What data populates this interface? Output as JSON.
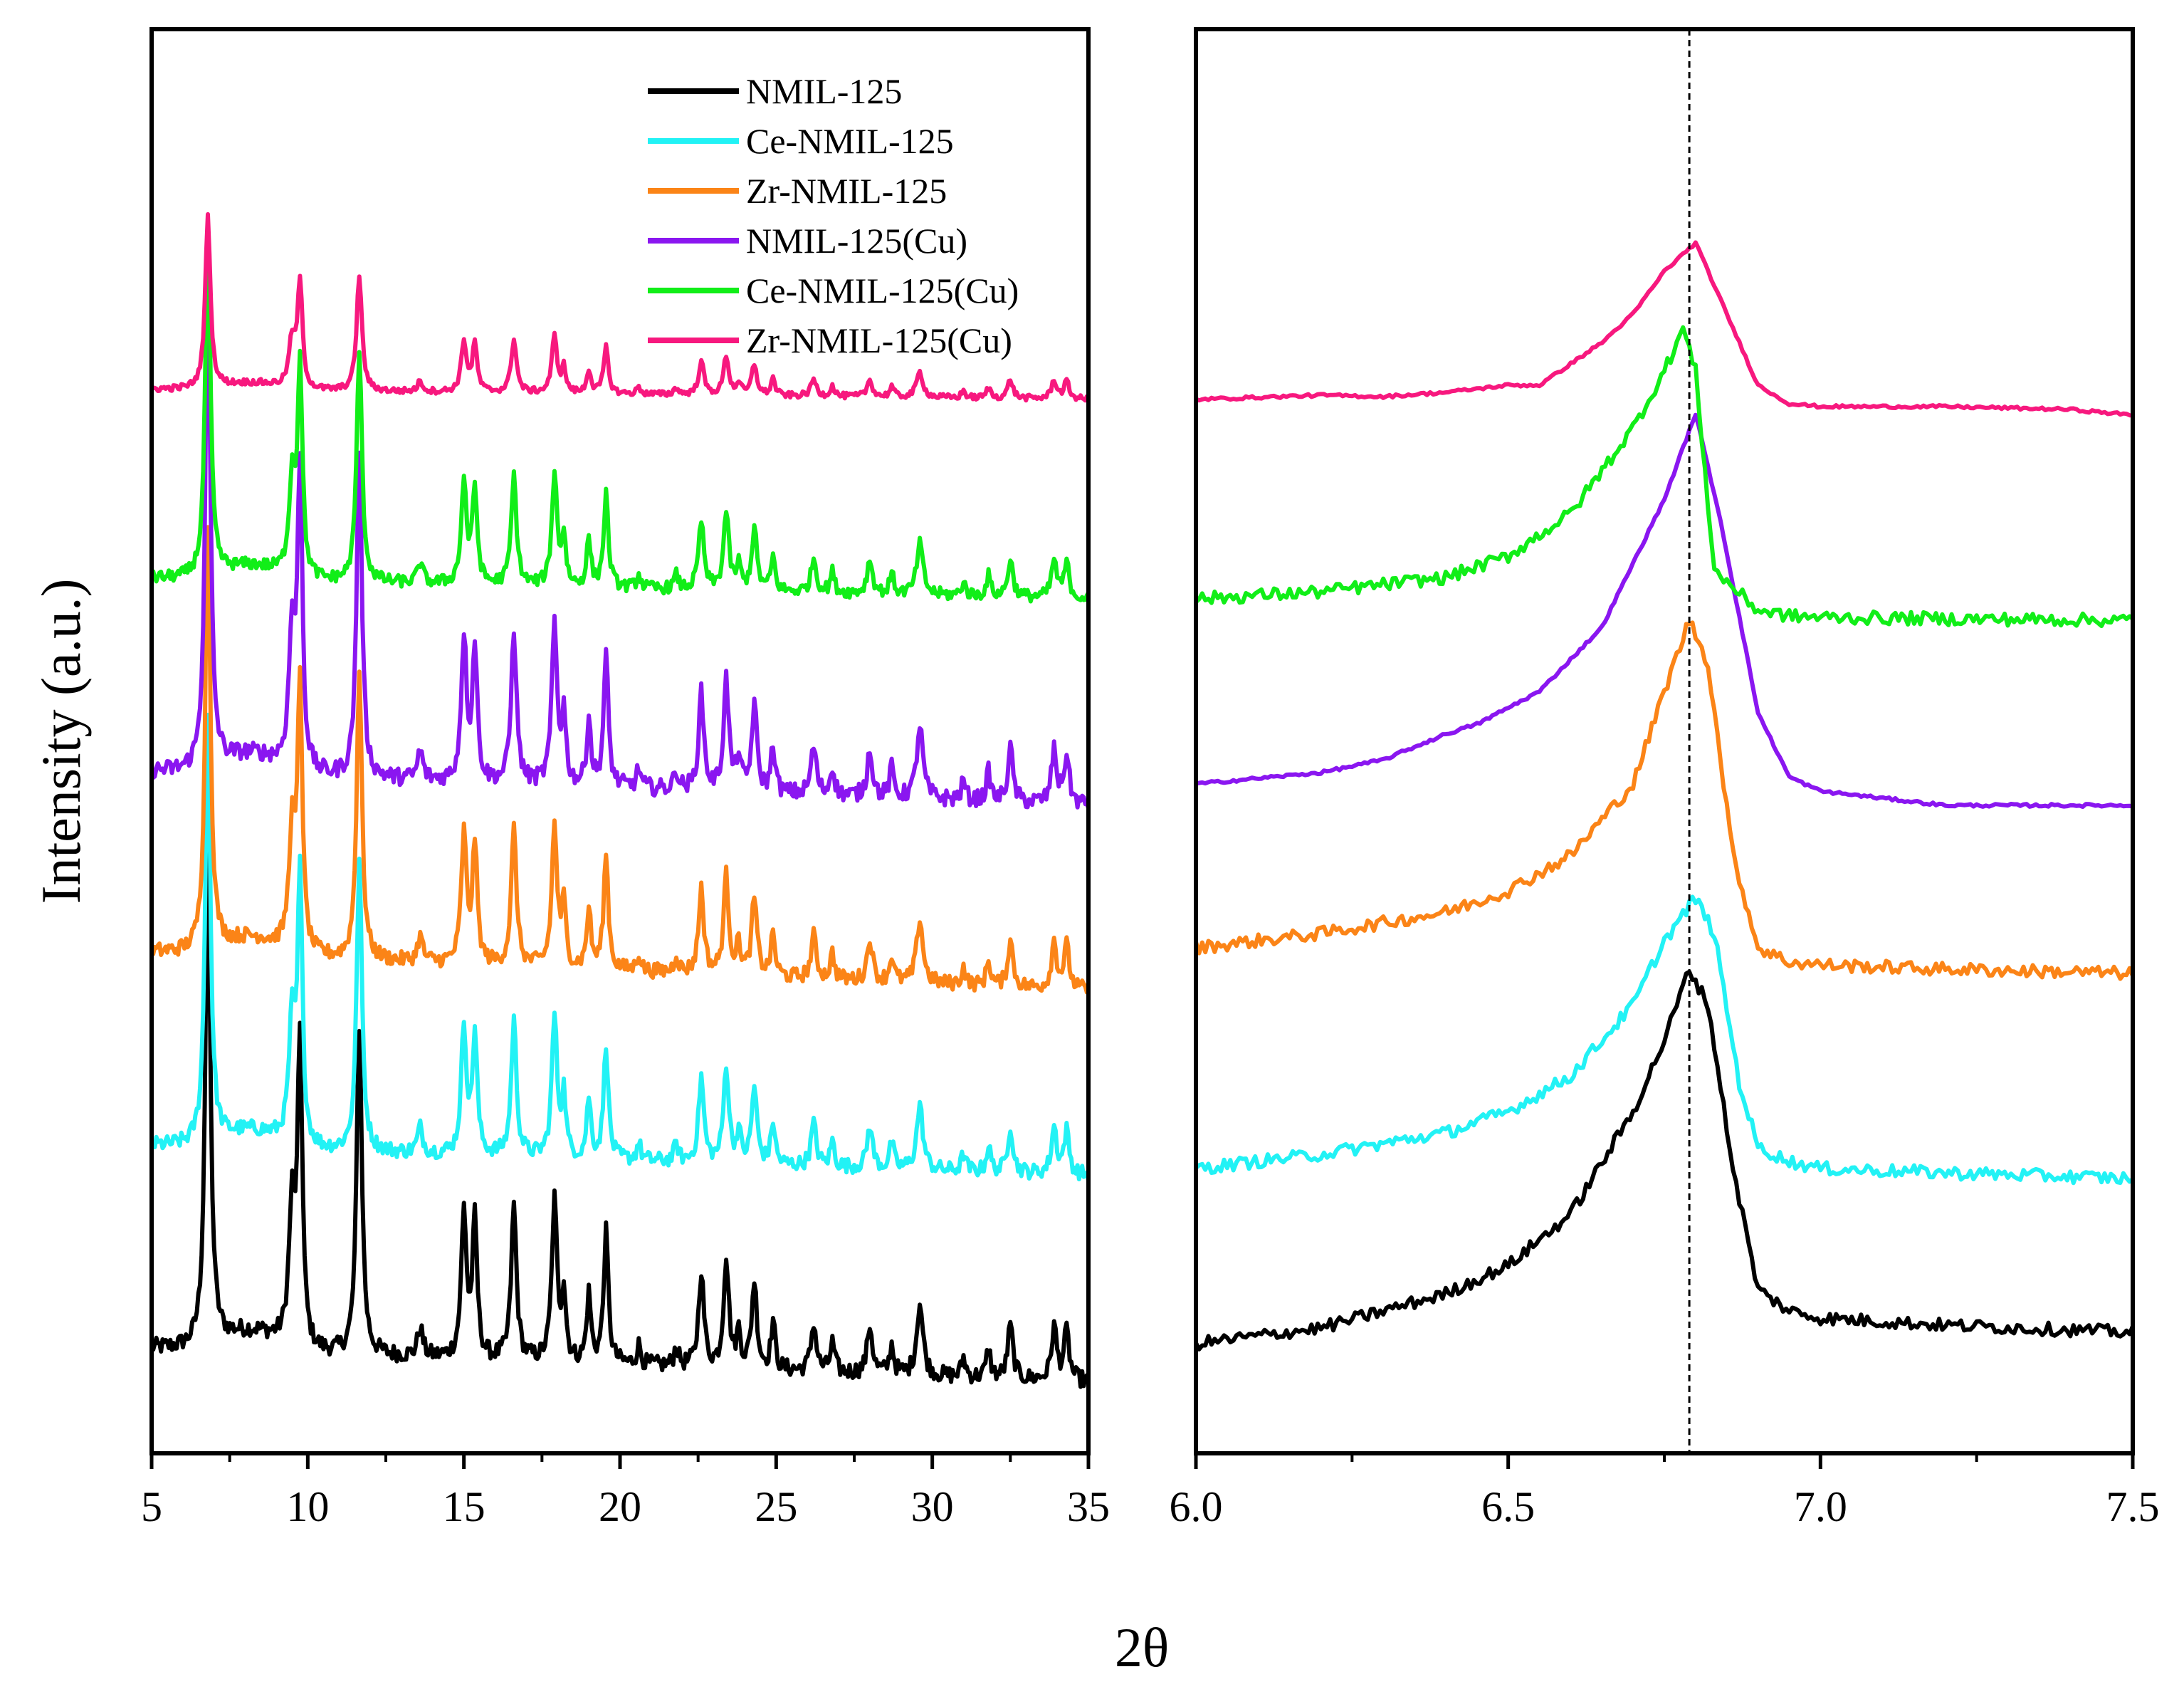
{
  "figure": {
    "ylabel": "Intensity (a.u.)",
    "xlabel": "2θ"
  },
  "series": [
    {
      "name": "NMIL-125",
      "color": "#000000"
    },
    {
      "name": "Ce-NMIL-125",
      "color": "#22f2f5"
    },
    {
      "name": "Zr-NMIL-125",
      "color": "#fb8417"
    },
    {
      "name": "NMIL-125(Cu)",
      "color": "#8a16f0"
    },
    {
      "name": "Ce-NMIL-125(Cu)",
      "color": "#11ee18"
    },
    {
      "name": "Zr-NMIL-125(Cu)",
      "color": "#f7187e"
    }
  ],
  "chart_data": [
    {
      "type": "line",
      "title": "",
      "xlabel": "2θ",
      "ylabel": "Intensity (a.u.)",
      "xlim": [
        5,
        35
      ],
      "ylim": [
        0,
        1
      ],
      "xticks": [
        5,
        10,
        15,
        20,
        25,
        30,
        35
      ],
      "xtick_labels": [
        "5",
        "10",
        "15",
        "20",
        "25",
        "30",
        "35"
      ],
      "yticks_shown": false,
      "grid": false,
      "legend_position": "top-right",
      "peaks": [
        {
          "x": 6.8,
          "h": 1.0,
          "w": 0.1
        },
        {
          "x": 9.5,
          "h": 0.28,
          "w": 0.12
        },
        {
          "x": 9.75,
          "h": 0.62,
          "w": 0.09
        },
        {
          "x": 11.65,
          "h": 0.68,
          "w": 0.1
        },
        {
          "x": 13.6,
          "h": 0.06,
          "w": 0.1
        },
        {
          "x": 15.0,
          "h": 0.3,
          "w": 0.1
        },
        {
          "x": 15.35,
          "h": 0.28,
          "w": 0.09
        },
        {
          "x": 16.6,
          "h": 0.32,
          "w": 0.1
        },
        {
          "x": 17.9,
          "h": 0.33,
          "w": 0.1
        },
        {
          "x": 18.2,
          "h": 0.14,
          "w": 0.08
        },
        {
          "x": 19.0,
          "h": 0.14,
          "w": 0.08
        },
        {
          "x": 19.55,
          "h": 0.27,
          "w": 0.09
        },
        {
          "x": 20.6,
          "h": 0.04,
          "w": 0.08
        },
        {
          "x": 21.8,
          "h": 0.04,
          "w": 0.08
        },
        {
          "x": 22.6,
          "h": 0.2,
          "w": 0.1
        },
        {
          "x": 23.4,
          "h": 0.23,
          "w": 0.1
        },
        {
          "x": 23.8,
          "h": 0.07,
          "w": 0.08
        },
        {
          "x": 24.3,
          "h": 0.18,
          "w": 0.1
        },
        {
          "x": 24.9,
          "h": 0.1,
          "w": 0.08
        },
        {
          "x": 26.2,
          "h": 0.1,
          "w": 0.1
        },
        {
          "x": 26.8,
          "h": 0.06,
          "w": 0.08
        },
        {
          "x": 28.0,
          "h": 0.1,
          "w": 0.1
        },
        {
          "x": 28.7,
          "h": 0.06,
          "w": 0.08
        },
        {
          "x": 29.6,
          "h": 0.15,
          "w": 0.12
        },
        {
          "x": 31.0,
          "h": 0.04,
          "w": 0.08
        },
        {
          "x": 31.8,
          "h": 0.06,
          "w": 0.08
        },
        {
          "x": 32.5,
          "h": 0.11,
          "w": 0.1
        },
        {
          "x": 33.9,
          "h": 0.11,
          "w": 0.1
        },
        {
          "x": 34.3,
          "h": 0.1,
          "w": 0.1
        }
      ],
      "series": [
        {
          "name": "NMIL-125",
          "offset": 0.05,
          "scale": 0.34,
          "base_start": 0.07,
          "base_end": 0.0
        },
        {
          "name": "Ce-NMIL-125",
          "offset": 0.195,
          "scale": 0.3,
          "base_start": 0.07,
          "base_end": 0.0
        },
        {
          "name": "Zr-NMIL-125",
          "offset": 0.325,
          "scale": 0.3,
          "base_start": 0.09,
          "base_end": 0.0
        },
        {
          "name": "NMIL-125(Cu)",
          "offset": 0.455,
          "scale": 0.34,
          "base_start": 0.07,
          "base_end": 0.0
        },
        {
          "name": "Ce-NMIL-125(Cu)",
          "offset": 0.6,
          "scale": 0.24,
          "base_start": 0.06,
          "base_end": 0.0
        },
        {
          "name": "Zr-NMIL-125(Cu)",
          "offset": 0.74,
          "scale": 0.12,
          "base_start": 0.06,
          "base_end": 0.0
        }
      ]
    },
    {
      "type": "line",
      "title": "",
      "xlabel": "2θ",
      "xlim": [
        6.0,
        7.5
      ],
      "ylim": [
        0,
        1
      ],
      "xticks": [
        6.0,
        6.5,
        7.0,
        7.5
      ],
      "xtick_labels": [
        "6.0",
        "6.5",
        "7.0",
        "7.5"
      ],
      "yticks_shown": false,
      "grid": false,
      "reference_line_x": 6.79,
      "series": [
        {
          "name": "NMIL-125",
          "x": [
            6.0,
            6.2,
            6.4,
            6.5,
            6.6,
            6.7,
            6.75,
            6.79,
            6.82,
            6.86,
            6.9,
            6.95,
            7.0,
            7.2,
            7.5
          ],
          "y": [
            0.077,
            0.088,
            0.112,
            0.132,
            0.168,
            0.24,
            0.29,
            0.34,
            0.315,
            0.2,
            0.115,
            0.1,
            0.095,
            0.09,
            0.085
          ]
        },
        {
          "name": "Ce-NMIL-125",
          "x": [
            6.0,
            6.2,
            6.4,
            6.5,
            6.6,
            6.7,
            6.75,
            6.8,
            6.83,
            6.87,
            6.9,
            6.95,
            7.0,
            7.2,
            7.5
          ],
          "y": [
            0.2,
            0.21,
            0.225,
            0.24,
            0.265,
            0.315,
            0.36,
            0.39,
            0.365,
            0.26,
            0.215,
            0.205,
            0.2,
            0.197,
            0.193
          ]
        },
        {
          "name": "Zr-NMIL-125",
          "x": [
            6.0,
            6.2,
            6.4,
            6.5,
            6.6,
            6.7,
            6.75,
            6.79,
            6.82,
            6.86,
            6.9,
            6.95,
            7.0,
            7.2,
            7.5
          ],
          "y": [
            0.355,
            0.365,
            0.38,
            0.395,
            0.42,
            0.47,
            0.535,
            0.585,
            0.555,
            0.42,
            0.355,
            0.345,
            0.343,
            0.34,
            0.337
          ]
        },
        {
          "name": "NMIL-125(Cu)",
          "x": [
            6.0,
            6.2,
            6.3,
            6.4,
            6.45,
            6.55,
            6.65,
            6.75,
            6.8,
            6.84,
            6.9,
            6.95,
            7.0,
            7.2,
            7.5
          ],
          "y": [
            0.47,
            0.478,
            0.487,
            0.505,
            0.512,
            0.535,
            0.58,
            0.67,
            0.73,
            0.655,
            0.52,
            0.475,
            0.465,
            0.455,
            0.455
          ]
        },
        {
          "name": "Ce-NMIL-125(Cu)",
          "x": [
            6.0,
            6.2,
            6.4,
            6.5,
            6.6,
            6.7,
            6.75,
            6.78,
            6.8,
            6.83,
            6.9,
            6.95,
            7.0,
            7.2,
            7.5
          ],
          "y": [
            0.6,
            0.605,
            0.615,
            0.63,
            0.66,
            0.72,
            0.76,
            0.79,
            0.76,
            0.62,
            0.592,
            0.588,
            0.587,
            0.586,
            0.585
          ]
        },
        {
          "name": "Zr-NMIL-125(Cu)",
          "x": [
            6.0,
            6.2,
            6.3,
            6.4,
            6.5,
            6.55,
            6.65,
            6.7,
            6.75,
            6.8,
            6.9,
            6.95,
            7.0,
            7.2,
            7.4,
            7.5
          ],
          "y": [
            0.74,
            0.743,
            0.742,
            0.745,
            0.75,
            0.75,
            0.78,
            0.8,
            0.83,
            0.85,
            0.75,
            0.737,
            0.735,
            0.735,
            0.733,
            0.729
          ]
        }
      ]
    }
  ]
}
